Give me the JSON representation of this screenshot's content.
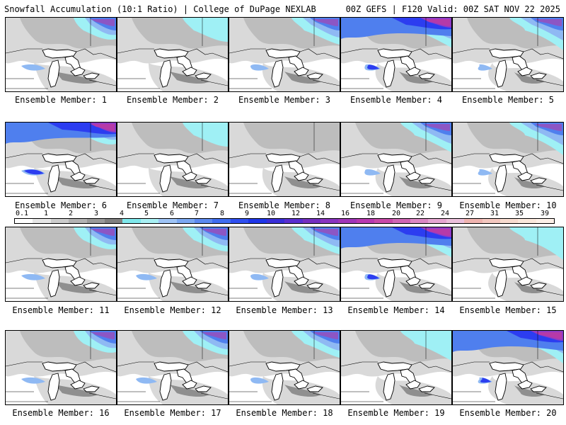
{
  "header": {
    "title": "Snowfall Accumulation (10:1 Ratio) | College of DuPage NEXLAB",
    "run_info": "00Z GEFS | F120 Valid: 00Z SAT NOV 22 2025"
  },
  "colors": {
    "trace": "#d9d9d9",
    "light": "#bdbdbd",
    "mid": "#8f8f8f",
    "cyan": "#9ff0f5",
    "blue_light": "#8fb9f3",
    "blue": "#4f7fee",
    "blue_deep": "#2c3df0",
    "purple": "#8e3bc8",
    "magenta": "#b63aa8"
  },
  "colorbar": {
    "ticks": [
      "0.1",
      "1",
      "2",
      "3",
      "4",
      "5",
      "6",
      "7",
      "8",
      "9",
      "10",
      "12",
      "14",
      "16",
      "18",
      "20",
      "22",
      "24",
      "27",
      "31",
      "35",
      "39"
    ],
    "segment_colors": [
      "#ffffff",
      "#e6e6e6",
      "#cccccc",
      "#b3b3b3",
      "#9a9a9a",
      "#808080",
      "#7fe8ec",
      "#a8f0f4",
      "#9fc4f6",
      "#7ba8f2",
      "#5d8af0",
      "#3f6df0",
      "#2f4ff0",
      "#1f36e8",
      "#3a2fd8",
      "#5a2fd0",
      "#7530c0",
      "#8a33c0",
      "#a035b8",
      "#b83ab0",
      "#c84aa8",
      "#d066b4",
      "#dc88c4",
      "#e6a6d2",
      "#ecc0dc",
      "#f0b4b0",
      "#f4c8c0",
      "#f8dcd0",
      "#fbe8dc",
      "#fdf0e8"
    ]
  },
  "members": [
    {
      "label": "Ensemble Member: 1",
      "snow": 2
    },
    {
      "label": "Ensemble Member: 2",
      "snow": 1
    },
    {
      "label": "Ensemble Member: 3",
      "snow": 2
    },
    {
      "label": "Ensemble Member: 4",
      "snow": 3
    },
    {
      "label": "Ensemble Member: 5",
      "snow": 2
    },
    {
      "label": "Ensemble Member: 6",
      "snow": 3
    },
    {
      "label": "Ensemble Member: 7",
      "snow": 1
    },
    {
      "label": "Ensemble Member: 8",
      "snow": 0
    },
    {
      "label": "Ensemble Member: 9",
      "snow": 2
    },
    {
      "label": "Ensemble Member: 10",
      "snow": 2
    },
    {
      "label": "Ensemble Member: 11",
      "snow": 2
    },
    {
      "label": "Ensemble Member: 12",
      "snow": 2
    },
    {
      "label": "Ensemble Member: 13",
      "snow": 2
    },
    {
      "label": "Ensemble Member: 14",
      "snow": 3
    },
    {
      "label": "Ensemble Member: 15",
      "snow": 1
    },
    {
      "label": "Ensemble Member: 16",
      "snow": 2
    },
    {
      "label": "Ensemble Member: 17",
      "snow": 2
    },
    {
      "label": "Ensemble Member: 18",
      "snow": 2
    },
    {
      "label": "Ensemble Member: 19",
      "snow": 1
    },
    {
      "label": "Ensemble Member: 20",
      "snow": 3
    }
  ]
}
